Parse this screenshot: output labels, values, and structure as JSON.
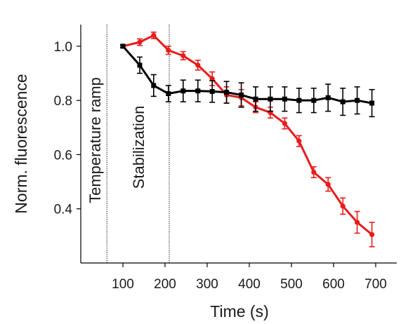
{
  "chart_data": {
    "type": "line",
    "xlabel": "Time (s)",
    "ylabel": "Norm. fluorescence",
    "xlim": [
      0,
      750
    ],
    "ylim": [
      0.2,
      1.08
    ],
    "xticks": [
      100,
      200,
      300,
      400,
      500,
      600,
      700
    ],
    "yticks": [
      0.4,
      0.6,
      0.8,
      1.0
    ],
    "xtick_labels": [
      "100",
      "200",
      "300",
      "400",
      "500",
      "600",
      "700"
    ],
    "ytick_labels": [
      "0.4",
      "0.6",
      "0.8",
      "1.0"
    ],
    "grid": false,
    "colors": {
      "red": "#e81c1c",
      "black": "#000000"
    },
    "vlines": [
      {
        "x": 62,
        "label": "Temperature ramp"
      },
      {
        "x": 210,
        "label": "Stabilization"
      }
    ],
    "series": [
      {
        "color": "#e81c1c",
        "marker": "circle",
        "x": [
          100,
          140,
          173,
          208,
          243,
          278,
          312,
          346,
          381,
          415,
          450,
          484,
          518,
          553,
          587,
          622,
          656,
          691
        ],
        "y": [
          1.0,
          1.015,
          1.04,
          0.985,
          0.965,
          0.93,
          0.88,
          0.82,
          0.81,
          0.775,
          0.755,
          0.715,
          0.65,
          0.535,
          0.49,
          0.41,
          0.35,
          0.305
        ],
        "err": [
          0.005,
          0.012,
          0.012,
          0.015,
          0.015,
          0.018,
          0.025,
          0.03,
          0.03,
          0.02,
          0.02,
          0.02,
          0.02,
          0.02,
          0.025,
          0.03,
          0.04,
          0.045
        ]
      },
      {
        "color": "#000000",
        "marker": "square",
        "x": [
          100,
          140,
          173,
          208,
          243,
          278,
          312,
          346,
          381,
          415,
          450,
          484,
          518,
          553,
          587,
          622,
          656,
          691
        ],
        "y": [
          1.0,
          0.93,
          0.855,
          0.825,
          0.835,
          0.835,
          0.833,
          0.83,
          0.82,
          0.805,
          0.805,
          0.805,
          0.8,
          0.8,
          0.81,
          0.795,
          0.8,
          0.79
        ],
        "err": [
          0.005,
          0.03,
          0.04,
          0.03,
          0.04,
          0.04,
          0.04,
          0.04,
          0.045,
          0.045,
          0.045,
          0.045,
          0.045,
          0.045,
          0.05,
          0.05,
          0.05,
          0.05
        ]
      }
    ]
  }
}
